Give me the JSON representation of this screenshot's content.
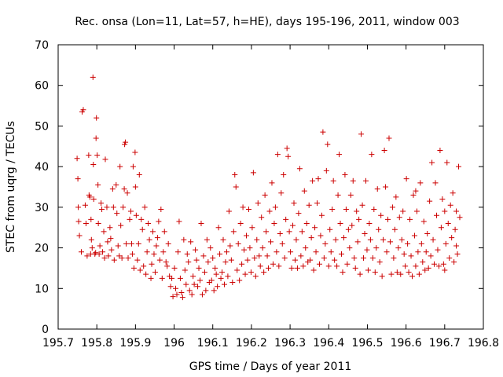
{
  "chart_data": {
    "type": "scatter",
    "title": "Rec. onsa (Lon=11, Lat=57, h=HE), days 195-196, 2011, window 003",
    "xlabel": "GPS time / Days of year 2011",
    "ylabel": "STEC from uqrg / TECUs",
    "xlim": [
      195.7,
      196.8
    ],
    "ylim": [
      0,
      70
    ],
    "xticks": [
      195.7,
      195.8,
      195.9,
      196,
      196.1,
      196.2,
      196.3,
      196.4,
      196.5,
      196.6,
      196.7,
      196.8
    ],
    "xtick_labels": [
      "195.7",
      "195.8",
      "195.9",
      "196",
      "196.1",
      "196.2",
      "196.3",
      "196.4",
      "196.5",
      "196.6",
      "196.7",
      "196.8"
    ],
    "yticks": [
      0,
      10,
      20,
      30,
      40,
      50,
      60,
      70
    ],
    "ytick_labels": [
      "0",
      "10",
      "20",
      "30",
      "40",
      "50",
      "60",
      "70"
    ],
    "grid": false,
    "marker": "+",
    "color": "#cc0000",
    "series": [
      {
        "x": [
          195.749,
          195.751,
          195.752,
          195.753,
          195.755,
          195.76,
          195.762,
          195.765,
          195.77,
          195.772,
          195.775,
          195.779,
          195.78,
          195.782,
          195.784,
          195.785,
          195.786,
          195.788,
          195.79,
          195.791,
          195.792,
          195.795,
          195.797,
          195.798,
          195.799,
          195.801,
          195.803,
          195.804,
          195.806,
          195.808,
          195.811,
          195.813,
          195.815,
          195.818,
          195.82,
          195.822,
          195.826,
          195.828,
          195.83,
          195.834,
          195.836,
          195.838,
          195.841,
          195.843,
          195.845,
          195.85,
          195.852,
          195.855,
          195.858,
          195.86,
          195.862,
          195.865,
          195.868,
          195.871,
          195.872,
          195.874,
          195.876,
          195.879,
          195.881,
          195.885,
          195.888,
          195.89,
          195.892,
          195.894,
          195.896,
          195.899,
          195.9,
          195.902,
          195.905,
          195.908,
          195.91,
          195.912,
          195.915,
          195.918,
          195.921,
          195.924,
          195.927,
          195.93,
          195.933,
          195.936,
          195.94,
          195.942,
          195.945,
          195.948,
          195.951,
          195.954,
          195.957,
          195.96,
          195.963,
          195.966,
          195.969,
          195.972,
          195.975,
          195.979,
          195.982,
          195.985,
          195.988,
          195.991,
          195.994,
          195.997
        ],
        "y": [
          42.0,
          37.0,
          30.0,
          26.5,
          23.0,
          19.0,
          53.5,
          54.0,
          30.5,
          26.0,
          18.0,
          42.8,
          33.0,
          32.5,
          18.5,
          27.0,
          22.0,
          20.0,
          62.0,
          40.5,
          32.0,
          18.5,
          18.8,
          47.0,
          52.0,
          42.8,
          35.5,
          26.0,
          18.5,
          20.5,
          31.0,
          29.5,
          19.0,
          24.0,
          17.5,
          41.8,
          30.0,
          21.5,
          18.0,
          25.0,
          22.3,
          19.5,
          34.5,
          30.0,
          17.0,
          35.5,
          28.5,
          20.5,
          18.0,
          40.0,
          25.5,
          17.5,
          30.0,
          34.5,
          45.5,
          46.0,
          21.0,
          33.5,
          17.5,
          27.0,
          29.0,
          21.0,
          18.5,
          40.0,
          15.0,
          43.5,
          35.0,
          28.0,
          17.0,
          21.0,
          38.0,
          14.5,
          27.0,
          24.5,
          15.5,
          30.0,
          13.5,
          19.0,
          26.0,
          22.0,
          12.5,
          16.0,
          24.0,
          18.5,
          14.0,
          20.5,
          22.5,
          26.5,
          17.0,
          29.5,
          12.5,
          19.0,
          24.0,
          16.5,
          15.5,
          21.0,
          13.0,
          10.5,
          12.5,
          8.0
        ]
      },
      {
        "x": [
          196.001,
          196.004,
          196.007,
          196.01,
          196.013,
          196.016,
          196.019,
          196.022,
          196.025,
          196.028,
          196.031,
          196.034,
          196.037,
          196.04,
          196.043,
          196.046,
          196.049,
          196.052,
          196.055,
          196.058,
          196.061,
          196.064,
          196.067,
          196.07,
          196.073,
          196.076,
          196.079,
          196.082,
          196.085,
          196.088,
          196.091,
          196.094,
          196.097,
          196.1,
          196.103,
          196.106,
          196.109,
          196.112,
          196.115,
          196.118,
          196.121,
          196.124,
          196.127,
          196.13,
          196.133,
          196.136,
          196.139,
          196.142,
          196.145,
          196.148,
          196.151,
          196.154,
          196.157,
          196.16,
          196.163,
          196.166,
          196.169,
          196.172,
          196.175,
          196.178,
          196.181,
          196.184,
          196.187,
          196.19,
          196.193,
          196.196,
          196.199,
          196.202,
          196.205,
          196.208,
          196.211,
          196.214,
          196.217,
          196.22,
          196.223,
          196.226,
          196.229,
          196.232,
          196.235,
          196.238,
          196.241,
          196.244,
          196.247,
          196.25,
          196.253,
          196.256,
          196.259,
          196.262,
          196.265,
          196.268,
          196.271,
          196.274,
          196.277,
          196.28,
          196.283,
          196.286,
          196.289,
          196.292,
          196.295,
          196.298
        ],
        "y": [
          15.0,
          10.0,
          8.5,
          19.0,
          26.5,
          12.5,
          9.0,
          7.8,
          22.0,
          14.5,
          11.0,
          18.5,
          16.5,
          9.5,
          21.5,
          8.5,
          13.0,
          11.0,
          19.5,
          17.0,
          10.5,
          15.0,
          12.0,
          26.0,
          8.5,
          18.0,
          14.0,
          9.5,
          22.0,
          16.5,
          11.5,
          20.0,
          12.0,
          17.5,
          9.5,
          15.0,
          13.5,
          10.5,
          25.0,
          18.5,
          12.5,
          14.0,
          22.0,
          11.0,
          16.5,
          19.0,
          13.0,
          29.0,
          20.5,
          17.0,
          11.5,
          24.0,
          38.0,
          35.0,
          14.5,
          21.0,
          12.0,
          26.0,
          16.0,
          30.0,
          19.5,
          13.5,
          23.0,
          17.0,
          29.5,
          20.0,
          14.0,
          25.0,
          38.5,
          17.5,
          13.0,
          22.0,
          31.0,
          18.0,
          15.5,
          27.5,
          20.0,
          14.0,
          33.0,
          24.0,
          18.0,
          15.0,
          29.0,
          21.5,
          36.0,
          16.0,
          26.0,
          30.0,
          19.0,
          43.0,
          15.5,
          23.5,
          33.5,
          21.0,
          38.0,
          17.5,
          27.0,
          44.5,
          42.5,
          24.0
        ]
      },
      {
        "x": [
          196.301,
          196.304,
          196.307,
          196.31,
          196.313,
          196.316,
          196.319,
          196.322,
          196.325,
          196.328,
          196.331,
          196.334,
          196.337,
          196.34,
          196.343,
          196.346,
          196.349,
          196.352,
          196.355,
          196.358,
          196.361,
          196.364,
          196.367,
          196.37,
          196.373,
          196.376,
          196.379,
          196.382,
          196.385,
          196.388,
          196.391,
          196.394,
          196.397,
          196.4,
          196.403,
          196.406,
          196.409,
          196.412,
          196.415,
          196.418,
          196.421,
          196.424,
          196.427,
          196.43,
          196.433,
          196.436,
          196.439,
          196.442,
          196.445,
          196.448,
          196.451,
          196.454,
          196.457,
          196.46,
          196.463,
          196.466,
          196.469,
          196.472,
          196.475,
          196.478,
          196.481,
          196.484,
          196.487,
          196.49,
          196.493,
          196.496,
          196.499,
          196.502,
          196.505,
          196.508,
          196.511,
          196.514,
          196.517,
          196.52,
          196.523,
          196.526,
          196.529,
          196.532,
          196.535,
          196.538,
          196.541,
          196.544,
          196.547,
          196.55,
          196.553,
          196.556,
          196.559,
          196.562,
          196.565,
          196.568,
          196.571,
          196.574,
          196.577,
          196.58,
          196.583,
          196.586,
          196.589,
          196.592,
          196.595,
          196.598
        ],
        "y": [
          19.0,
          15.0,
          25.5,
          31.0,
          17.0,
          22.0,
          15.0,
          28.5,
          39.5,
          18.0,
          24.0,
          15.5,
          34.0,
          20.0,
          26.0,
          16.5,
          30.5,
          17.0,
          22.5,
          36.5,
          14.5,
          25.0,
          19.0,
          31.0,
          37.0,
          16.0,
          23.0,
          28.0,
          48.5,
          17.5,
          21.0,
          39.0,
          45.5,
          15.5,
          24.5,
          19.0,
          29.5,
          36.5,
          17.0,
          22.0,
          15.5,
          33.0,
          43.0,
          26.0,
          18.5,
          14.0,
          22.5,
          38.0,
          29.5,
          16.0,
          24.5,
          20.0,
          33.0,
          25.5,
          36.5,
          17.5,
          15.0,
          29.0,
          21.5,
          27.0,
          13.5,
          48.0,
          30.5,
          17.5,
          23.5,
          36.5,
          19.5,
          14.5,
          26.0,
          22.0,
          43.0,
          17.5,
          29.5,
          14.0,
          20.0,
          34.5,
          24.5,
          16.5,
          28.0,
          13.0,
          22.0,
          44.0,
          35.0,
          19.0,
          27.0,
          47.0,
          21.5,
          13.5,
          30.0,
          17.5,
          24.5,
          32.5,
          14.0,
          20.0,
          27.5,
          13.5,
          22.0,
          29.0,
          18.5,
          15.5
        ]
      },
      {
        "x": [
          196.601,
          196.604,
          196.607,
          196.61,
          196.613,
          196.616,
          196.619,
          196.622,
          196.625,
          196.628,
          196.631,
          196.634,
          196.637,
          196.64,
          196.643,
          196.646,
          196.649,
          196.652,
          196.655,
          196.658,
          196.661,
          196.664,
          196.667,
          196.67,
          196.673,
          196.676,
          196.679,
          196.682,
          196.685,
          196.688,
          196.691,
          196.694,
          196.697,
          196.7,
          196.703,
          196.706,
          196.709,
          196.712,
          196.715,
          196.718,
          196.721,
          196.724,
          196.727,
          196.73,
          196.733,
          196.736,
          196.739,
          196.73,
          196.7,
          196.625
        ],
        "y": [
          37.0,
          21.0,
          14.0,
          27.0,
          18.0,
          13.0,
          33.0,
          23.0,
          15.5,
          29.0,
          19.0,
          13.5,
          36.0,
          21.0,
          16.5,
          26.5,
          14.5,
          19.0,
          23.5,
          15.0,
          31.5,
          18.0,
          41.0,
          22.0,
          16.0,
          36.0,
          28.0,
          19.5,
          15.5,
          44.0,
          25.0,
          32.0,
          16.0,
          29.0,
          21.0,
          41.0,
          26.0,
          17.5,
          30.5,
          22.5,
          33.5,
          16.5,
          24.5,
          29.0,
          18.5,
          40.0,
          27.5,
          20.5,
          14.5,
          34.0
        ]
      }
    ]
  }
}
